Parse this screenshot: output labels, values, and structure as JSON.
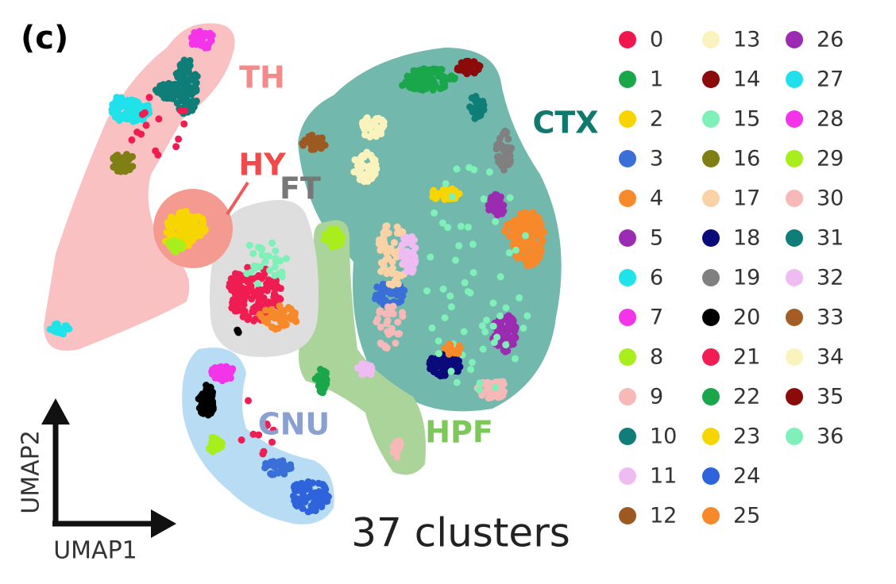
{
  "panel_label": "(c)",
  "chart_data": {
    "type": "scatter",
    "x_label": "UMAP1",
    "y_label": "UMAP2",
    "annotation": "37 clusters",
    "regions": [
      {
        "name": "TH",
        "color": "#f48a8a"
      },
      {
        "name": "HY",
        "color": "#f04a4a"
      },
      {
        "name": "FT",
        "color": "#777777"
      },
      {
        "name": "CTX",
        "color": "#10796e"
      },
      {
        "name": "HPF",
        "color": "#7cc85a"
      },
      {
        "name": "CNU",
        "color": "#8aa0d0"
      }
    ],
    "series": [
      {
        "name": "0",
        "color": "#f0174e"
      },
      {
        "name": "1",
        "color": "#1aa64a"
      },
      {
        "name": "2",
        "color": "#f7d500"
      },
      {
        "name": "3",
        "color": "#3a6fd8"
      },
      {
        "name": "4",
        "color": "#f7892a"
      },
      {
        "name": "5",
        "color": "#9b2bb0"
      },
      {
        "name": "6",
        "color": "#1fe3e8"
      },
      {
        "name": "7",
        "color": "#f434e8"
      },
      {
        "name": "8",
        "color": "#a8ee1c"
      },
      {
        "name": "9",
        "color": "#f7b8b8"
      },
      {
        "name": "10",
        "color": "#0f7d78"
      },
      {
        "name": "11",
        "color": "#eebcf2"
      },
      {
        "name": "12",
        "color": "#9c5a22"
      },
      {
        "name": "13",
        "color": "#fbf3bd"
      },
      {
        "name": "14",
        "color": "#8b0a0a"
      },
      {
        "name": "15",
        "color": "#7ef0b8"
      },
      {
        "name": "16",
        "color": "#7f7f14"
      },
      {
        "name": "17",
        "color": "#fbd2a6"
      },
      {
        "name": "18",
        "color": "#0a0a7a"
      },
      {
        "name": "19",
        "color": "#808080"
      },
      {
        "name": "20",
        "color": "#000000"
      },
      {
        "name": "21",
        "color": "#ef1d52"
      },
      {
        "name": "22",
        "color": "#1aa64a"
      },
      {
        "name": "23",
        "color": "#f7d500"
      },
      {
        "name": "24",
        "color": "#2f63dc"
      },
      {
        "name": "25",
        "color": "#f7892a"
      },
      {
        "name": "26",
        "color": "#9b2bb0"
      },
      {
        "name": "27",
        "color": "#20e0ee"
      },
      {
        "name": "28",
        "color": "#f434e8"
      },
      {
        "name": "29",
        "color": "#a8ee1c"
      },
      {
        "name": "30",
        "color": "#f7b8b8"
      },
      {
        "name": "31",
        "color": "#0f7d78"
      },
      {
        "name": "32",
        "color": "#eebcf2"
      },
      {
        "name": "33",
        "color": "#a45d24"
      },
      {
        "name": "34",
        "color": "#fbf3bd"
      },
      {
        "name": "35",
        "color": "#8b0a0a"
      },
      {
        "name": "36",
        "color": "#7ef0b8"
      }
    ]
  }
}
